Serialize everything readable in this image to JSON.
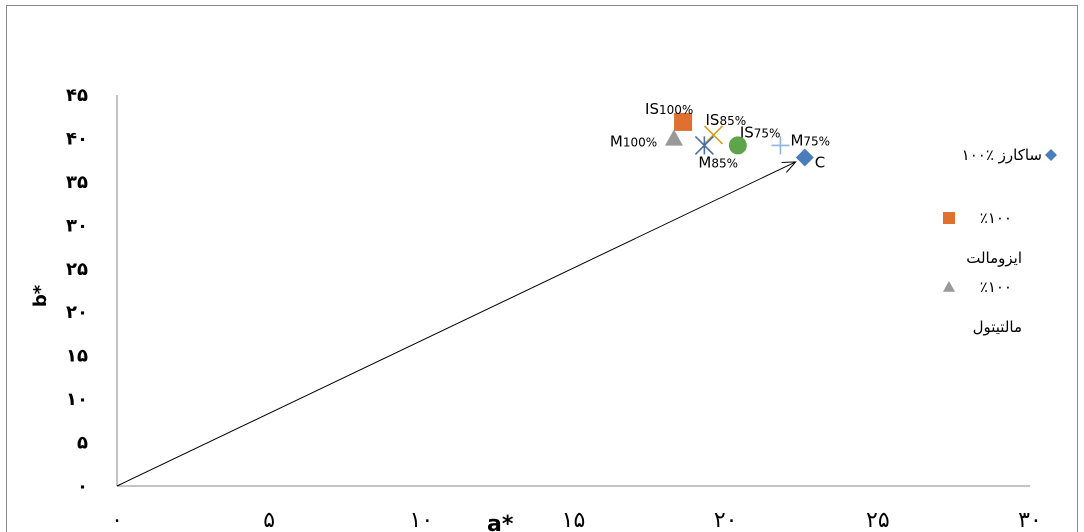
{
  "chart_data": {
    "type": "scatter",
    "xlabel": "a*",
    "ylabel": "b*",
    "xlim": [
      0,
      30
    ],
    "ylim": [
      0,
      45
    ],
    "x_ticks": [
      {
        "v": 0,
        "label": "۰"
      },
      {
        "v": 5,
        "label": "۵"
      },
      {
        "v": 10,
        "label": "۱۰"
      },
      {
        "v": 15,
        "label": "۱۵"
      },
      {
        "v": 20,
        "label": "۲۰"
      },
      {
        "v": 25,
        "label": "۲۵"
      },
      {
        "v": 30,
        "label": "۳۰"
      }
    ],
    "y_ticks": [
      {
        "v": 0,
        "label": "۰"
      },
      {
        "v": 5,
        "label": "۵"
      },
      {
        "v": 10,
        "label": "۱۰"
      },
      {
        "v": 15,
        "label": "۱۵"
      },
      {
        "v": 20,
        "label": "۲۰"
      },
      {
        "v": 25,
        "label": "۲۵"
      },
      {
        "v": 30,
        "label": "۳۰"
      },
      {
        "v": 35,
        "label": "۳۵"
      },
      {
        "v": 40,
        "label": "۴۰"
      },
      {
        "v": 45,
        "label": "۴۵"
      }
    ],
    "points": [
      {
        "label": "C",
        "x": 22.6,
        "y": 37.8,
        "marker": "diamond",
        "color": "#4a7ebb",
        "label_dx": 10,
        "label_dy": 10
      },
      {
        "label": "IS100%",
        "x": 18.6,
        "y": 41.9,
        "marker": "square",
        "color": "#e0702f",
        "label_dx": -38,
        "label_dy": -8
      },
      {
        "label": "IS85%",
        "x": 19.6,
        "y": 40.4,
        "marker": "x",
        "color": "#d4a017",
        "label_dx": -8,
        "label_dy": -10
      },
      {
        "label": "IS75%",
        "x": 20.4,
        "y": 39.2,
        "marker": "circle",
        "color": "#5ea44a",
        "label_dx": 2,
        "label_dy": -8
      },
      {
        "label": "M100%",
        "x": 18.3,
        "y": 40.0,
        "marker": "triangle",
        "color": "#999999",
        "label_dx": -64,
        "label_dy": 8
      },
      {
        "label": "M85%",
        "x": 19.3,
        "y": 39.2,
        "marker": "star",
        "color": "#4a6fa8",
        "label_dx": -6,
        "label_dy": 22
      },
      {
        "label": "M75%",
        "x": 21.8,
        "y": 39.2,
        "marker": "plus",
        "color": "#8fb3e0",
        "label_dx": 10,
        "label_dy": 0
      }
    ],
    "arrow": {
      "from": [
        0,
        0
      ],
      "to": [
        22.3,
        37.3
      ]
    },
    "legend": {
      "placement": "right",
      "items": [
        {
          "label": "۱۰۰٪ ساکارز",
          "marker": "diamond",
          "color": "#4a7ebb"
        },
        {
          "label": "٪۱۰۰",
          "label2": "ایزومالت",
          "marker": "square",
          "color": "#e0702f"
        },
        {
          "label": "٪۱۰۰",
          "label2": "مالتیتول",
          "marker": "triangle",
          "color": "#999999"
        }
      ]
    }
  }
}
